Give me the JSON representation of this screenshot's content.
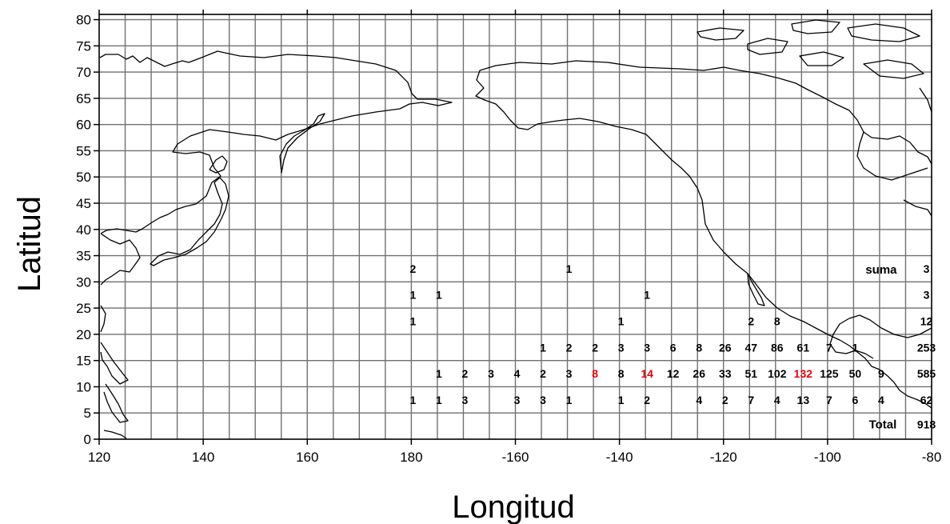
{
  "map": {
    "x_axis": {
      "title": "Longitud",
      "ticks": [
        {
          "value": 120,
          "label": "120"
        },
        {
          "value": 140,
          "label": "140"
        },
        {
          "value": 160,
          "label": "160"
        },
        {
          "value": 180,
          "label": "180"
        },
        {
          "value": 200,
          "label": "-160"
        },
        {
          "value": 220,
          "label": "-140"
        },
        {
          "value": 240,
          "label": "-120"
        },
        {
          "value": 260,
          "label": "-100"
        },
        {
          "value": 280,
          "label": "-80"
        }
      ],
      "range": [
        120,
        280
      ],
      "grid_step": 5
    },
    "y_axis": {
      "title": "Latitud",
      "ticks": [
        0,
        5,
        10,
        15,
        20,
        25,
        30,
        35,
        40,
        45,
        50,
        55,
        60,
        65,
        70,
        75,
        80
      ],
      "range": [
        0,
        81
      ],
      "grid_step": 5
    },
    "grid": true,
    "cell_counts": [
      {
        "lon": 180,
        "lat": 32.5,
        "count": "2"
      },
      {
        "lon": 180,
        "lat": 27.5,
        "count": "1"
      },
      {
        "lon": 180,
        "lat": 22.5,
        "count": "1"
      },
      {
        "lon": 180,
        "lat": 7.5,
        "count": "1"
      },
      {
        "lon": 185,
        "lat": 27.5,
        "count": "1"
      },
      {
        "lon": 185,
        "lat": 12.5,
        "count": "1"
      },
      {
        "lon": 185,
        "lat": 7.5,
        "count": "1"
      },
      {
        "lon": 190,
        "lat": 12.5,
        "count": "2"
      },
      {
        "lon": 190,
        "lat": 7.5,
        "count": "3"
      },
      {
        "lon": 195,
        "lat": 12.5,
        "count": "3"
      },
      {
        "lon": 200,
        "lat": 12.5,
        "count": "4"
      },
      {
        "lon": 200,
        "lat": 7.5,
        "count": "3"
      },
      {
        "lon": 205,
        "lat": 17.5,
        "count": "1"
      },
      {
        "lon": 205,
        "lat": 12.5,
        "count": "2"
      },
      {
        "lon": 205,
        "lat": 7.5,
        "count": "3"
      },
      {
        "lon": 210,
        "lat": 32.5,
        "count": "1"
      },
      {
        "lon": 210,
        "lat": 17.5,
        "count": "2"
      },
      {
        "lon": 210,
        "lat": 12.5,
        "count": "3"
      },
      {
        "lon": 210,
        "lat": 7.5,
        "count": "1"
      },
      {
        "lon": 215,
        "lat": 17.5,
        "count": "2"
      },
      {
        "lon": 215,
        "lat": 12.5,
        "count": "8",
        "highlight": true
      },
      {
        "lon": 220,
        "lat": 22.5,
        "count": "1"
      },
      {
        "lon": 220,
        "lat": 17.5,
        "count": "3"
      },
      {
        "lon": 220,
        "lat": 12.5,
        "count": "8"
      },
      {
        "lon": 220,
        "lat": 7.5,
        "count": "1"
      },
      {
        "lon": 225,
        "lat": 27.5,
        "count": "1"
      },
      {
        "lon": 225,
        "lat": 17.5,
        "count": "3"
      },
      {
        "lon": 225,
        "lat": 12.5,
        "count": "14",
        "highlight": true
      },
      {
        "lon": 225,
        "lat": 7.5,
        "count": "2"
      },
      {
        "lon": 230,
        "lat": 17.5,
        "count": "6"
      },
      {
        "lon": 230,
        "lat": 12.5,
        "count": "12"
      },
      {
        "lon": 235,
        "lat": 17.5,
        "count": "8"
      },
      {
        "lon": 235,
        "lat": 12.5,
        "count": "26"
      },
      {
        "lon": 235,
        "lat": 7.5,
        "count": "4"
      },
      {
        "lon": 240,
        "lat": 17.5,
        "count": "26"
      },
      {
        "lon": 240,
        "lat": 12.5,
        "count": "33"
      },
      {
        "lon": 240,
        "lat": 7.5,
        "count": "2"
      },
      {
        "lon": 245,
        "lat": 22.5,
        "count": "2"
      },
      {
        "lon": 245,
        "lat": 17.5,
        "count": "47"
      },
      {
        "lon": 245,
        "lat": 12.5,
        "count": "51"
      },
      {
        "lon": 245,
        "lat": 7.5,
        "count": "7"
      },
      {
        "lon": 250,
        "lat": 22.5,
        "count": "8"
      },
      {
        "lon": 250,
        "lat": 17.5,
        "count": "86"
      },
      {
        "lon": 250,
        "lat": 12.5,
        "count": "102"
      },
      {
        "lon": 250,
        "lat": 7.5,
        "count": "4"
      },
      {
        "lon": 255,
        "lat": 17.5,
        "count": "61"
      },
      {
        "lon": 255,
        "lat": 12.5,
        "count": "132",
        "highlight": true
      },
      {
        "lon": 255,
        "lat": 7.5,
        "count": "13"
      },
      {
        "lon": 260,
        "lat": 17.5,
        "count": "7"
      },
      {
        "lon": 260,
        "lat": 12.5,
        "count": "125"
      },
      {
        "lon": 260,
        "lat": 7.5,
        "count": "7"
      },
      {
        "lon": 265,
        "lat": 17.5,
        "count": "1"
      },
      {
        "lon": 265,
        "lat": 12.5,
        "count": "50"
      },
      {
        "lon": 265,
        "lat": 7.5,
        "count": "6"
      },
      {
        "lon": 270,
        "lat": 12.5,
        "count": "9"
      },
      {
        "lon": 270,
        "lat": 7.5,
        "count": "4"
      }
    ],
    "row_sums": {
      "label": "suma",
      "items": [
        {
          "lat": 32.5,
          "value": "3"
        },
        {
          "lat": 27.5,
          "value": "3"
        },
        {
          "lat": 22.5,
          "value": "12"
        },
        {
          "lat": 17.5,
          "value": "253"
        },
        {
          "lat": 12.5,
          "value": "585"
        },
        {
          "lat": 7.5,
          "value": "62"
        }
      ]
    },
    "total": {
      "label": "Total",
      "value": "918"
    }
  }
}
